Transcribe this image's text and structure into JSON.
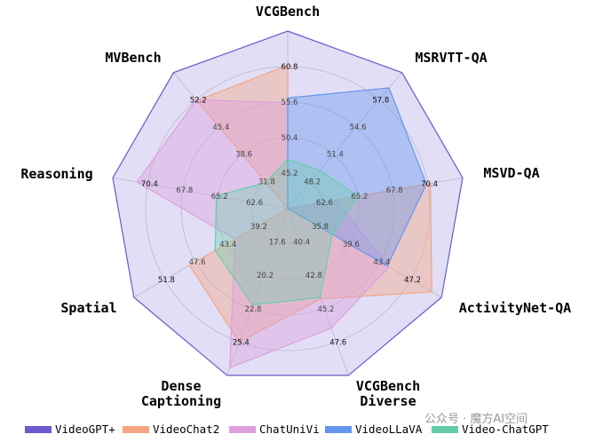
{
  "chart_data": {
    "type": "radar",
    "axes": [
      {
        "label": "VCGBench",
        "ticks": [
          "45.2",
          "50.4",
          "55.6",
          "60.8"
        ],
        "min": 40,
        "max": 66
      },
      {
        "label": "MSRVTT-QA",
        "ticks": [
          "48.2",
          "51.4",
          "54.6",
          "57.8"
        ],
        "min": 45,
        "max": 61
      },
      {
        "label": "MSVD-QA",
        "ticks": [
          "62.6",
          "65.2",
          "67.8",
          "70.4"
        ],
        "min": 60,
        "max": 73
      },
      {
        "label": "ActivityNet-QA",
        "ticks": [
          "35.8",
          "39.6",
          "43.4",
          "47.2"
        ],
        "min": 32,
        "max": 51
      },
      {
        "label": "VCGBench\nDiverse",
        "ticks": [
          "40.4",
          "42.8",
          "45.2",
          "47.6"
        ],
        "min": 38,
        "max": 50
      },
      {
        "label": "Dense\nCaptioning",
        "ticks": [
          "17.6",
          "20.2",
          "22.8",
          "25.4"
        ],
        "min": 15,
        "max": 28
      },
      {
        "label": "Spatial",
        "ticks": [
          "39.2",
          "43.4",
          "47.6",
          "51.8"
        ],
        "min": 35,
        "max": 56
      },
      {
        "label": "Reasoning",
        "ticks": [
          "62.6",
          "65.2",
          "67.8",
          "70.4"
        ],
        "min": 60,
        "max": 73
      },
      {
        "label": "MVBench",
        "ticks": [
          "31.8",
          "38.6",
          "45.4",
          "52.2"
        ],
        "min": 25,
        "max": 59
      }
    ],
    "series": [
      {
        "name": "VideoGPT+",
        "color": "#6a5acd",
        "values": [
          66,
          61,
          73,
          51,
          50,
          28,
          56,
          73,
          59
        ]
      },
      {
        "name": "VideoChat2",
        "color": "#f4a582",
        "values": [
          61,
          45,
          70.6,
          49.8,
          44.5,
          25.4,
          48.4,
          60,
          52
        ]
      },
      {
        "name": "ChatUniVi",
        "color": "#dda0dd",
        "values": [
          55.5,
          45,
          63.6,
          44.5,
          46.6,
          27.4,
          42.2,
          71.2,
          52.2
        ]
      },
      {
        "name": "VideoLLaVA",
        "color": "#6495ed",
        "values": [
          56.2,
          59.2,
          70.3,
          44.3,
          38,
          15,
          35,
          60,
          25
        ]
      },
      {
        "name": "Video-ChatGPT",
        "color": "#66cdaa",
        "values": [
          47.2,
          49.5,
          65.2,
          37.5,
          44.4,
          22.5,
          44.9,
          65.3,
          31.5
        ]
      }
    ],
    "legend_position": "bottom"
  },
  "watermark": "公众号 · 魔方AI空间"
}
